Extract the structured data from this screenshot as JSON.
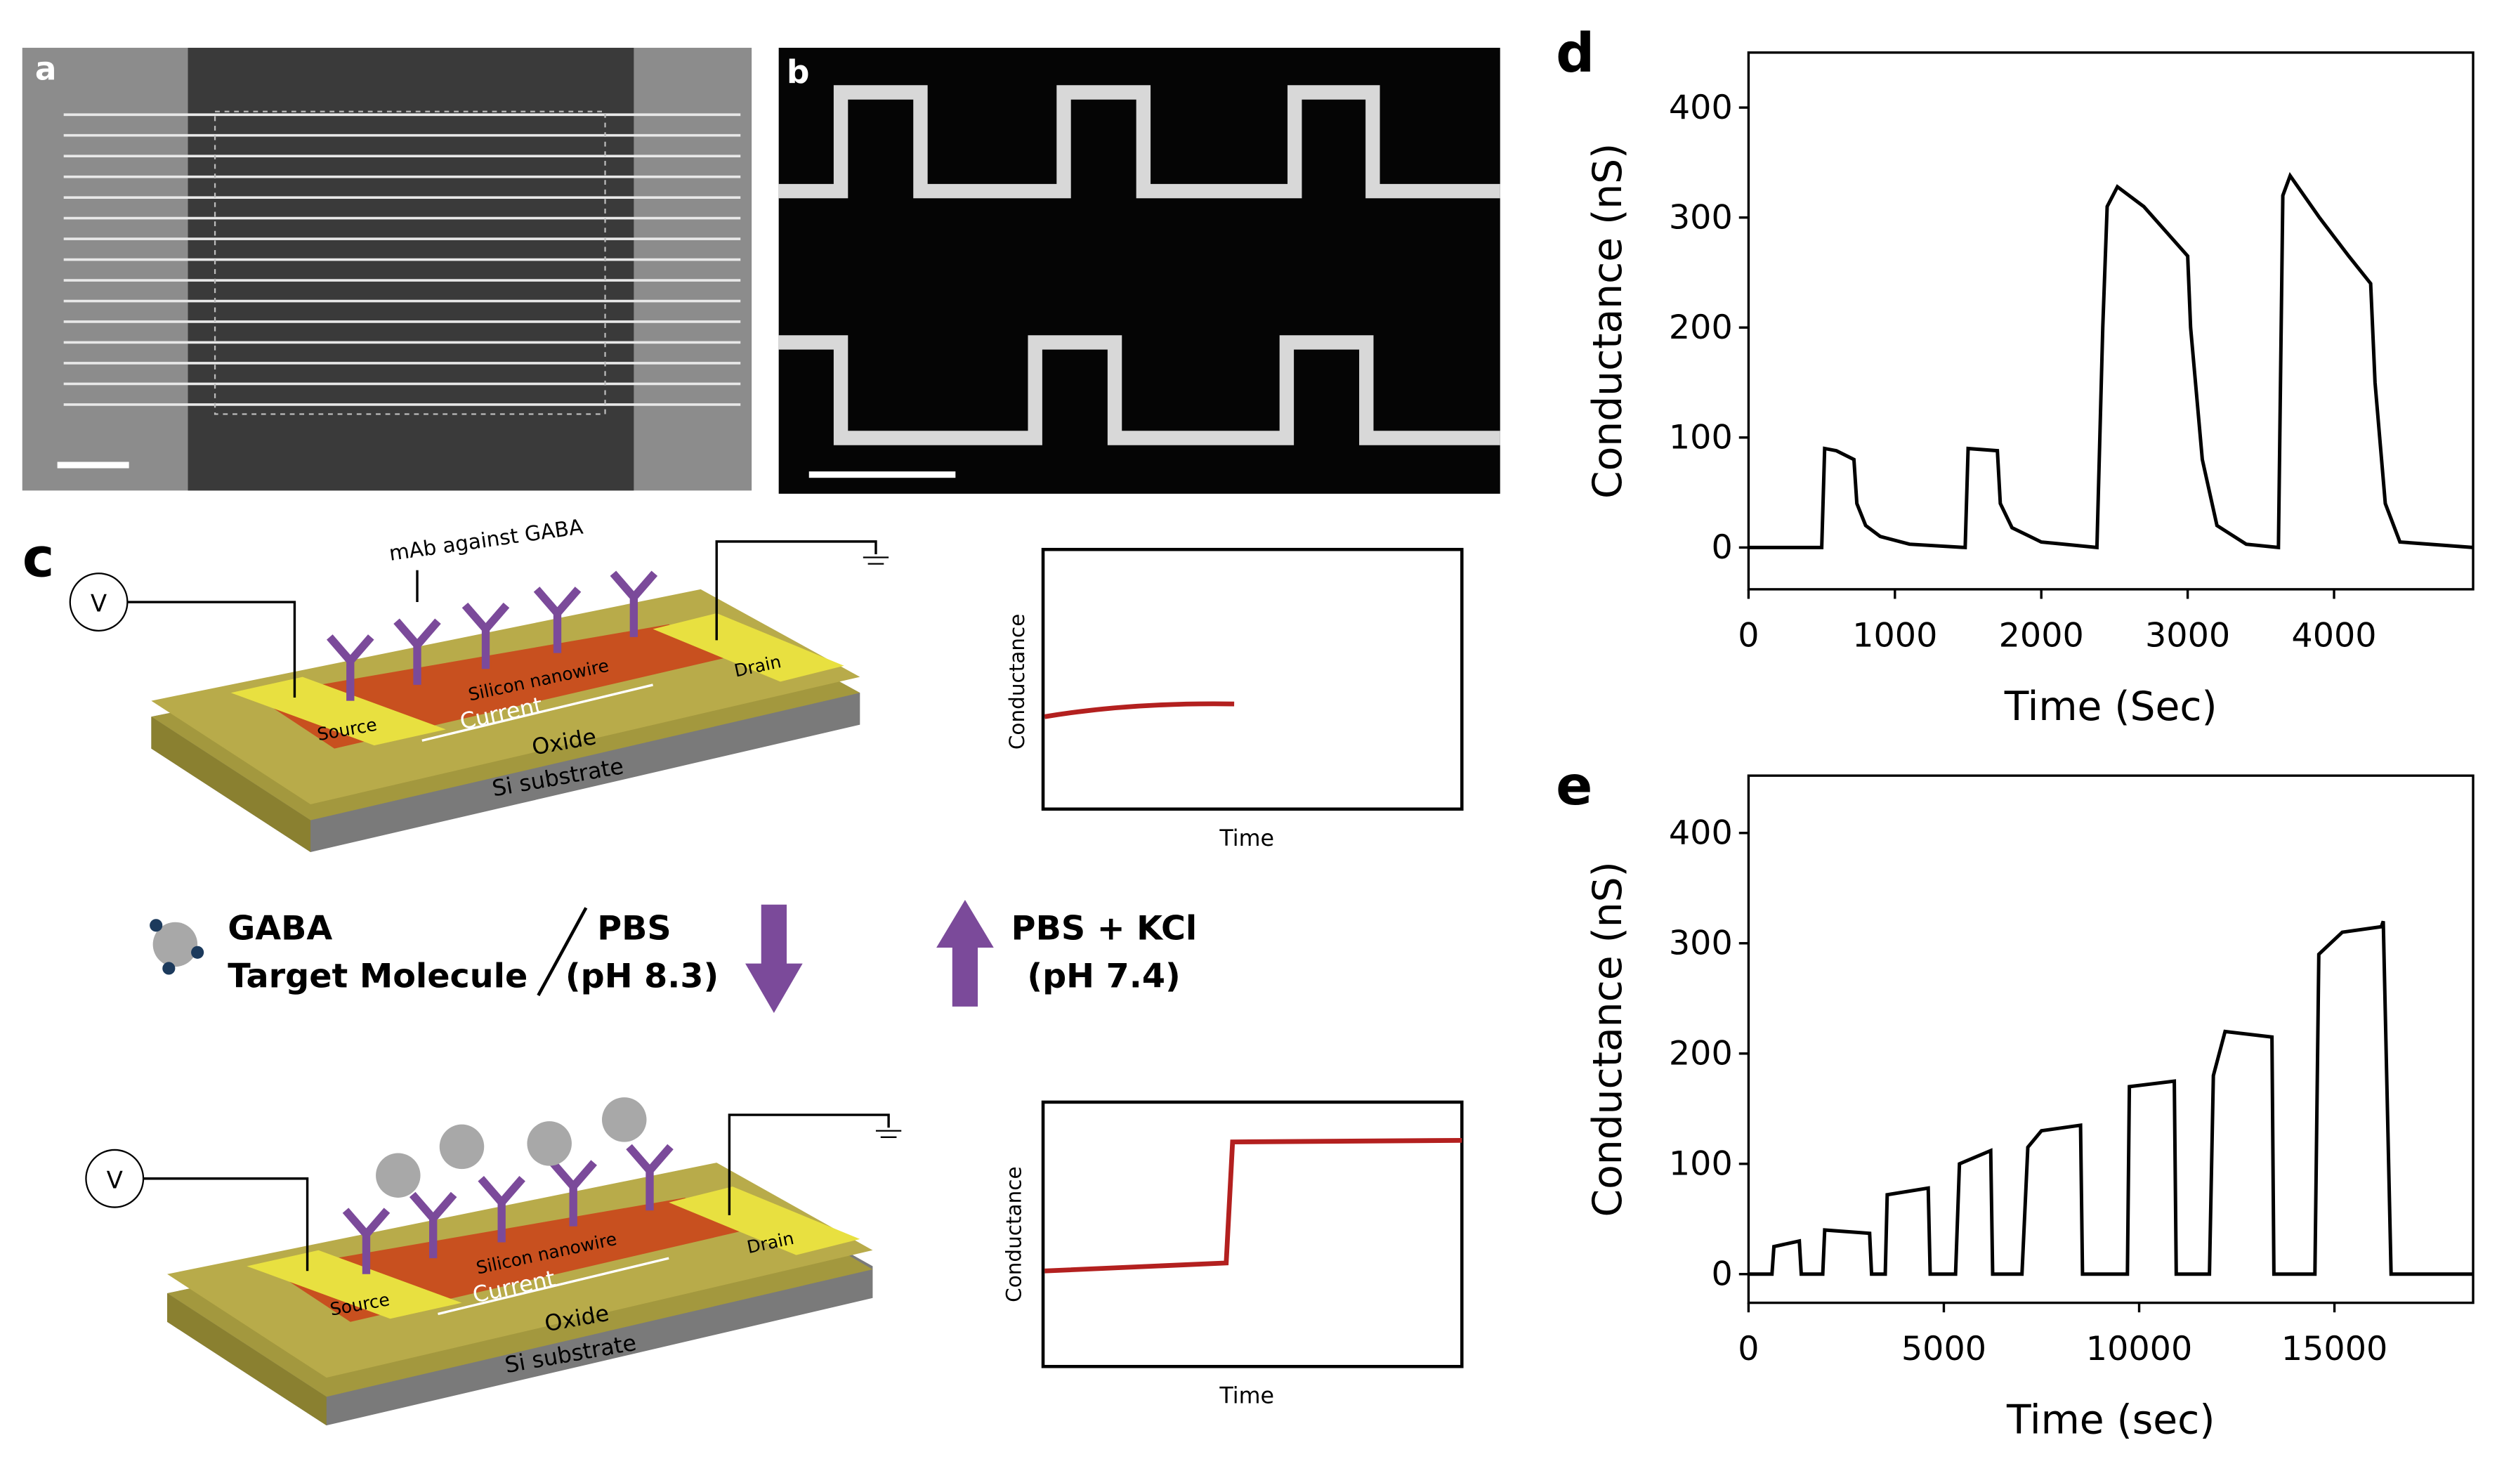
{
  "panel_labels": [
    "a",
    "b",
    "c",
    "d",
    "e"
  ],
  "panel_c": {
    "antibody_label": "mAb against GABA",
    "voltage": "V",
    "nanowire": "Silicon nanowire",
    "current": "Current",
    "source": "Source",
    "drain": "Drain",
    "oxide": "Oxide",
    "substrate": "Si substrate",
    "graph_y": "Conductance",
    "graph_x": "Time",
    "legend": {
      "molecule_line1": "GABA",
      "molecule_line2": "Target Molecule",
      "buffer1_line1": "PBS",
      "buffer1_line2": "(pH 8.3)",
      "buffer2_line1": "PBS + KCl",
      "buffer2_line2": "(pH 7.4)"
    }
  },
  "chart_data": [
    {
      "type": "line",
      "x_label": "Time (Sec)",
      "y_label": "Conductance (nS)",
      "color": "#000000",
      "xlim": [
        0,
        4950
      ],
      "ylim": [
        -38,
        450
      ],
      "xticks": [
        0,
        1000,
        2000,
        3000,
        4000
      ],
      "yticks": [
        0,
        100,
        200,
        300,
        400
      ],
      "x": [
        0,
        500,
        520,
        600,
        720,
        740,
        800,
        900,
        1100,
        1480,
        1500,
        1700,
        1720,
        1800,
        2000,
        2380,
        2420,
        2450,
        2520,
        2700,
        2900,
        3000,
        3020,
        3100,
        3200,
        3400,
        3620,
        3650,
        3700,
        3900,
        4100,
        4250,
        4280,
        4350,
        4450,
        4950
      ],
      "values": [
        0,
        0,
        90,
        88,
        80,
        40,
        20,
        10,
        3,
        0,
        90,
        88,
        40,
        18,
        5,
        0,
        200,
        310,
        328,
        310,
        280,
        265,
        200,
        80,
        20,
        3,
        0,
        320,
        338,
        300,
        265,
        240,
        150,
        40,
        5,
        0
      ]
    },
    {
      "type": "line",
      "x_label": "Time (sec)",
      "y_label": "Conductance (nS)",
      "color": "#000000",
      "xlim": [
        0,
        18550
      ],
      "ylim": [
        -26,
        452
      ],
      "xticks": [
        0,
        5000,
        10000,
        15000
      ],
      "yticks": [
        0,
        100,
        200,
        300,
        400
      ],
      "x": [
        0,
        600,
        650,
        1300,
        1350,
        1900,
        1950,
        3100,
        3150,
        3500,
        3550,
        4600,
        4650,
        5300,
        5400,
        6200,
        6250,
        7000,
        7150,
        7500,
        8500,
        8550,
        9700,
        9750,
        10900,
        10950,
        11800,
        11900,
        12200,
        13400,
        13450,
        14500,
        14600,
        15200,
        16200,
        16250,
        16450,
        18550
      ],
      "values": [
        0,
        0,
        25,
        30,
        0,
        0,
        40,
        37,
        0,
        0,
        72,
        78,
        0,
        0,
        100,
        112,
        0,
        0,
        115,
        130,
        135,
        0,
        0,
        170,
        175,
        0,
        0,
        180,
        220,
        215,
        0,
        0,
        290,
        310,
        315,
        320,
        0,
        0
      ]
    }
  ]
}
